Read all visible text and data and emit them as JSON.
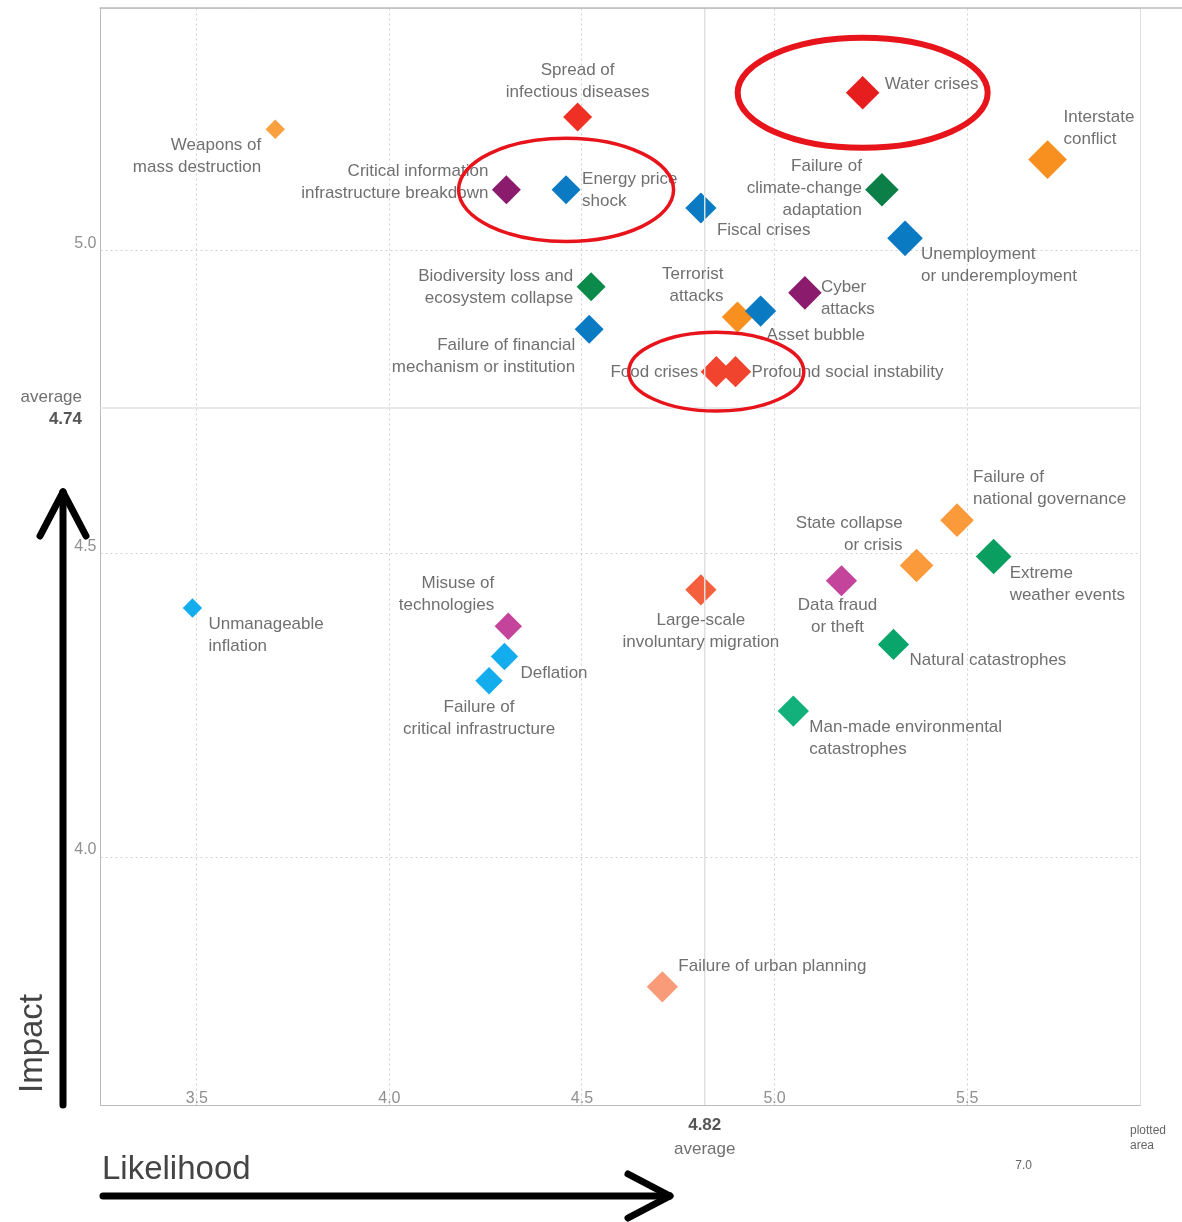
{
  "chart_data": {
    "type": "bubble",
    "xlabel": "Likelihood",
    "ylabel": "Impact",
    "xlim": [
      3.25,
      5.95
    ],
    "ylim": [
      3.59,
      5.4
    ],
    "xticks": [
      3.5,
      {
        "value": 4,
        "label": "4.0"
      },
      4.5,
      {
        "value": 5,
        "label": "5.0"
      },
      5.5
    ],
    "yticks": [
      {
        "value": 4,
        "label": "4.0"
      },
      4.5,
      {
        "value": 5,
        "label": "5.0"
      }
    ],
    "grid": true,
    "marker": "diamond",
    "ref_lines": [
      {
        "axis": "x",
        "value": 4.82,
        "label": "4.82\naverage"
      },
      {
        "axis": "y",
        "value": 4.74,
        "label": "average\n4.74"
      }
    ],
    "annotations": [
      "7.0",
      "plotted\narea"
    ],
    "series": [
      {
        "name": "Weapons of\nmass destruction",
        "color": "#fba040",
        "x": [
          3.705
        ],
        "values": [
          5.2
        ],
        "sizes": [
          0.25
        ]
      },
      {
        "name": "Spread of\ninfectious diseases",
        "color": "#ee3124",
        "x": [
          4.49
        ],
        "values": [
          5.22
        ],
        "sizes": [
          0.56
        ]
      },
      {
        "name": "Water crises",
        "color": "#e61e1e",
        "x": [
          5.23
        ],
        "values": [
          5.26
        ],
        "sizes": [
          0.75
        ]
      },
      {
        "name": "Interstate\nconflict",
        "color": "#f7901e",
        "x": [
          5.71
        ],
        "values": [
          5.15
        ],
        "sizes": [
          1
        ]
      },
      {
        "name": "Failure of\nclimate-change\nadaptation",
        "color": "#0c7f48",
        "x": [
          5.28
        ],
        "values": [
          5.1
        ],
        "sizes": [
          0.75
        ]
      },
      {
        "name": "Critical information\ninfrastructure breakdown",
        "color": "#8a1b6d",
        "x": [
          4.305
        ],
        "values": [
          5.1
        ],
        "sizes": [
          0.56
        ]
      },
      {
        "name": "Energy price\nshock",
        "color": "#0a7bc2",
        "x": [
          4.46
        ],
        "values": [
          5.1
        ],
        "sizes": [
          0.56
        ]
      },
      {
        "name": "Fiscal crises",
        "color": "#0a7bc2",
        "x": [
          4.81
        ],
        "values": [
          5.07
        ],
        "sizes": [
          0.65
        ]
      },
      {
        "name": "Unemployment\nor underemployment",
        "color": "#0a7bc2",
        "x": [
          5.34
        ],
        "values": [
          5.02
        ],
        "sizes": [
          0.85
        ]
      },
      {
        "name": "Biodiversity loss and\necosystem collapse",
        "color": "#0b8a4a",
        "x": [
          4.525
        ],
        "values": [
          4.94
        ],
        "sizes": [
          0.56
        ]
      },
      {
        "name": "Cyber\nattacks",
        "color": "#8a1b6d",
        "x": [
          5.08
        ],
        "values": [
          4.93
        ],
        "sizes": [
          0.75
        ]
      },
      {
        "name": "Failure of financial\nmechanism or institution",
        "color": "#0a7bc2",
        "x": [
          4.52
        ],
        "values": [
          4.87
        ],
        "sizes": [
          0.56
        ]
      },
      {
        "name": "Terrorist\nattacks",
        "color": "#f7901e",
        "x": [
          4.905
        ],
        "values": [
          4.89
        ],
        "sizes": [
          0.65
        ]
      },
      {
        "name": "Asset bubble",
        "color": "#0a7bc2",
        "x": [
          4.965
        ],
        "values": [
          4.9
        ],
        "sizes": [
          0.65
        ]
      },
      {
        "name": "Food crises",
        "color": "#f0442e",
        "x": [
          4.85
        ],
        "values": [
          4.8
        ],
        "sizes": [
          0.65
        ]
      },
      {
        "name": "Profound social instability",
        "color": "#f0442e",
        "x": [
          4.9
        ],
        "values": [
          4.8
        ],
        "sizes": [
          0.65
        ]
      },
      {
        "name": "Failure of\nnational governance",
        "color": "#fb9a3a",
        "x": [
          5.475
        ],
        "values": [
          4.555
        ],
        "sizes": [
          0.75
        ]
      },
      {
        "name": "State collapse\nor crisis",
        "color": "#fb9a3a",
        "x": [
          5.37
        ],
        "values": [
          4.48
        ],
        "sizes": [
          0.75
        ]
      },
      {
        "name": "Extreme\nweather events",
        "color": "#0a9e60",
        "x": [
          5.57
        ],
        "values": [
          4.495
        ],
        "sizes": [
          0.85
        ]
      },
      {
        "name": "Data fraud\nor theft",
        "color": "#c4449c",
        "x": [
          5.175
        ],
        "values": [
          4.455
        ],
        "sizes": [
          0.65
        ]
      },
      {
        "name": "Large-scale\ninvoluntary migration",
        "color": "#f4603e",
        "x": [
          4.81
        ],
        "values": [
          4.44
        ],
        "sizes": [
          0.65
        ]
      },
      {
        "name": "Unmanageable\ninflation",
        "color": "#13acec",
        "x": [
          3.49
        ],
        "values": [
          4.41
        ],
        "sizes": [
          0.25
        ]
      },
      {
        "name": "Misuse of\ntechnologies",
        "color": "#c4449c",
        "x": [
          4.31
        ],
        "values": [
          4.38
        ],
        "sizes": [
          0.5
        ]
      },
      {
        "name": "Deflation",
        "color": "#13acec",
        "x": [
          4.3
        ],
        "values": [
          4.33
        ],
        "sizes": [
          0.5
        ]
      },
      {
        "name": "Failure of\ncritical infrastructure",
        "color": "#13acec",
        "x": [
          4.26
        ],
        "values": [
          4.29
        ],
        "sizes": [
          0.5
        ]
      },
      {
        "name": "Natural catastrophes",
        "color": "#0aa56a",
        "x": [
          5.31
        ],
        "values": [
          4.35
        ],
        "sizes": [
          0.65
        ]
      },
      {
        "name": "Man-made environmental\ncatastrophes",
        "color": "#12b07a",
        "x": [
          5.05
        ],
        "values": [
          4.24
        ],
        "sizes": [
          0.65
        ]
      },
      {
        "name": "Failure of urban planning",
        "color": "#f99a78",
        "x": [
          4.71
        ],
        "values": [
          3.785
        ],
        "sizes": [
          0.65
        ]
      }
    ]
  }
}
